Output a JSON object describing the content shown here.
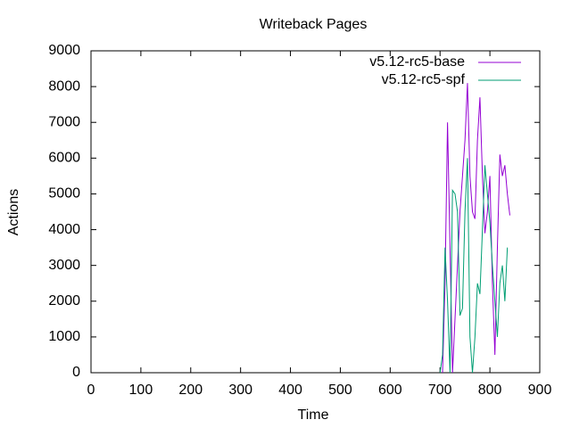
{
  "chart_data": {
    "type": "line",
    "title": "Writeback Pages",
    "x_label": "Time",
    "y_label": "Actions",
    "x": [
      700,
      705,
      710,
      715,
      720,
      725,
      730,
      735,
      740,
      745,
      750,
      755,
      760,
      765,
      770,
      775,
      780,
      785,
      790,
      795,
      800,
      805,
      810,
      815,
      820,
      825,
      830,
      835,
      840
    ],
    "series": [
      {
        "name": "v5.12-rc5-base",
        "color": "#9400d3",
        "values": [
          null,
          0,
          2500,
          7000,
          3500,
          0,
          1500,
          3000,
          4500,
          5500,
          6500,
          8100,
          5500,
          4500,
          4300,
          6500,
          7700,
          5500,
          3900,
          4500,
          5500,
          2500,
          500,
          3500,
          6100,
          5500,
          5800,
          5000,
          4400
        ]
      },
      {
        "name": "v5.12-rc5-spf",
        "color": "#009e73",
        "values": [
          0,
          500,
          3500,
          2000,
          0,
          5100,
          5000,
          4500,
          1600,
          1800,
          4500,
          6000,
          1000,
          0,
          1000,
          2500,
          2200,
          4000,
          5800,
          5000,
          4200,
          3000,
          2000,
          1000,
          2500,
          3000,
          2000,
          3500,
          null
        ]
      }
    ],
    "xlim": [
      0,
      900
    ],
    "xticks": [
      0,
      100,
      200,
      300,
      400,
      500,
      600,
      700,
      800,
      900
    ],
    "ylim": [
      0,
      9000
    ],
    "yticks": [
      0,
      1000,
      2000,
      3000,
      4000,
      5000,
      6000,
      7000,
      8000,
      9000
    ],
    "legend": "top-right"
  }
}
